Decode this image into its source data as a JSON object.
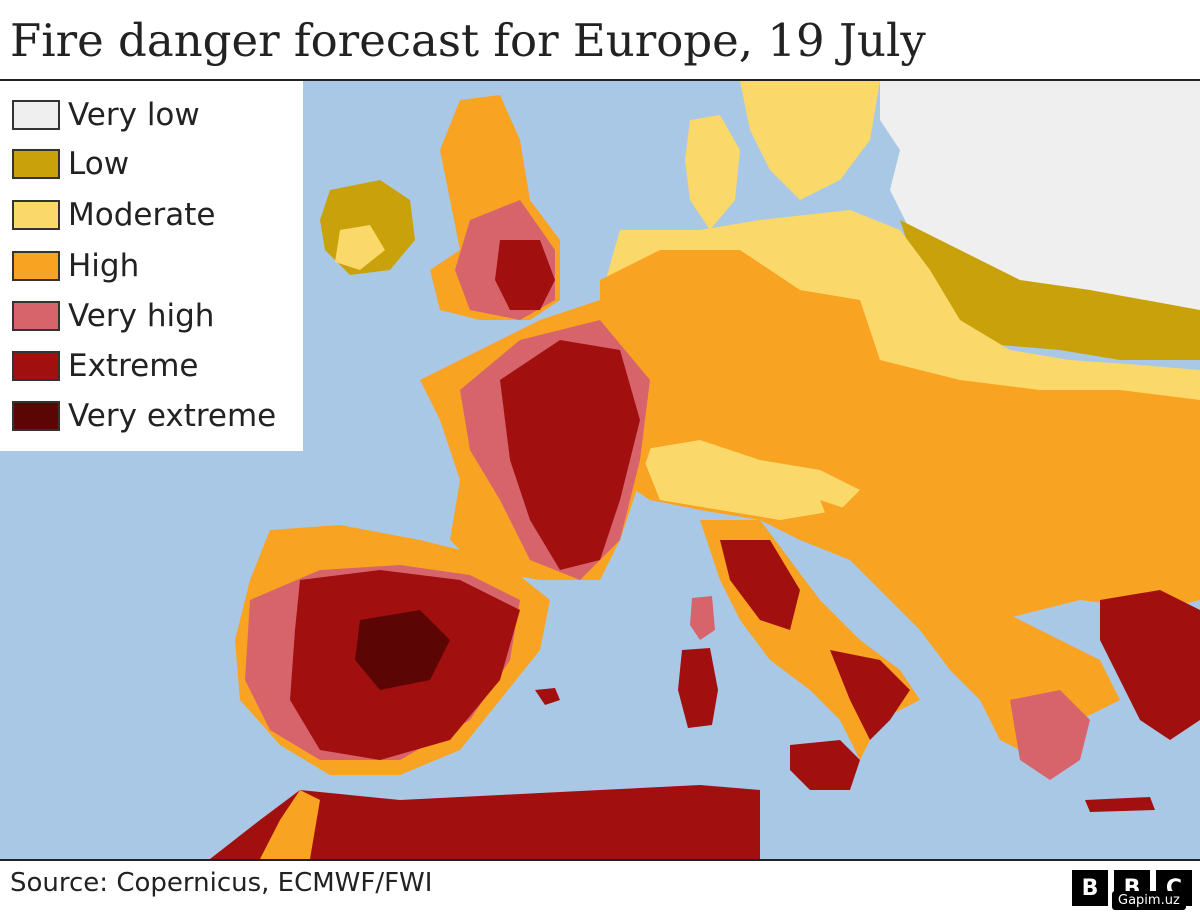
{
  "title": "Fire danger forecast for Europe, 19 July",
  "legend": {
    "items": [
      {
        "label": "Very low",
        "color": "#efefef"
      },
      {
        "label": "Low",
        "color": "#c9a10a"
      },
      {
        "label": "Moderate",
        "color": "#fbd86a"
      },
      {
        "label": "High",
        "color": "#f9a322"
      },
      {
        "label": "Very high",
        "color": "#d7646b"
      },
      {
        "label": "Extreme",
        "color": "#a20f0f"
      },
      {
        "label": "Very extreme",
        "color": "#5c0505"
      }
    ]
  },
  "colors": {
    "sea": "#a9c8e6",
    "very_low": "#efefef",
    "low": "#c9a10a",
    "moderate": "#fbd86a",
    "high": "#f9a322",
    "very_high": "#d7646b",
    "extreme": "#a20f0f",
    "very_extreme": "#5c0505"
  },
  "source": "Source: Copernicus, ECMWF/FWI",
  "logo": {
    "letters": [
      "B",
      "B",
      "C"
    ]
  },
  "watermark": "Gapim.uz"
}
